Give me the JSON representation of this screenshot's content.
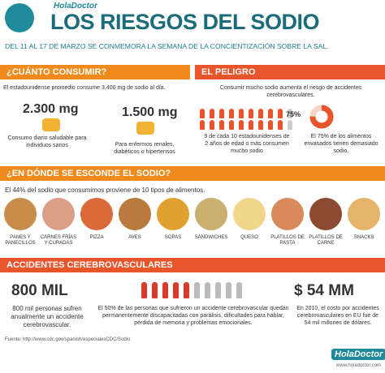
{
  "header": {
    "brand": "HolaDoctor",
    "title": "LOS RIESGOS DEL SODIO",
    "subtitle": "DEL 11 AL 17 DE MARZO SE CONMEMORA LA SEMANA DE LA CONCIENTIZACIÓN SOBRE LA SAL."
  },
  "consume": {
    "heading": "¿CUÁNTO CONSUMIR?",
    "intro": "El estadounidense promedio consume 3,400 mg de sodio al día.",
    "items": [
      {
        "amount": "2.300 mg",
        "text": "Consumo diario saludable para individuos sanos"
      },
      {
        "amount": "1.500 mg",
        "text": "Para enfermos renales, diabéticos o hipertensos"
      }
    ]
  },
  "danger": {
    "heading": "EL PELIGRO",
    "intro": "Consumir mucho sodio aumenta el riesgo de accidentes cerebrovasculares.",
    "people_text": "9 de cada 10 estadounidenses de 2 años de edad o más consumen mucho sodio",
    "donut": {
      "label": "75%",
      "value": 75,
      "text": "El 75% de los alimentos envasados tienen demasiado sodio."
    }
  },
  "foods": {
    "heading": "¿EN DÓNDE SE ESCONDE EL SODIO?",
    "intro": "El 44% del sodio que consumimos proviene de 10 tipos de alimentos.",
    "items": [
      "PANES Y PANECILLOS",
      "CARNES FRÍAS Y CURADAS",
      "PIZZA",
      "AVES",
      "SOPAS",
      "SÁNDWICHES",
      "QUESO",
      "PLATILLOS DE PASTA",
      "PLATILLOS DE CARNE",
      "SNACKS"
    ]
  },
  "strokes": {
    "heading": "ACCIDENTES CEREBROVASCULARES",
    "left_value": "800 MIL",
    "left_text": "800 mil personas sufren anualmente un accidente cerebrovascular.",
    "middle_text": "El 50% de las personas que sufrieron un accidente cerebrovascular quedan permanentemente discapacitadas con parálisis, dificultades para hablar, pérdida de memoria y problemas emocionales.",
    "right_value": "$ 54 MM",
    "right_text": "En 2010, el costo por accidentes cerebrovasculares en EU fue de 54 mil millones de dólares."
  },
  "source": "Fuente: http://www.cdc.gov/spanish/especialesCDC/Sodio",
  "footer": {
    "brand": "HolaDoctor",
    "url": "www.holadoctor.com"
  }
}
